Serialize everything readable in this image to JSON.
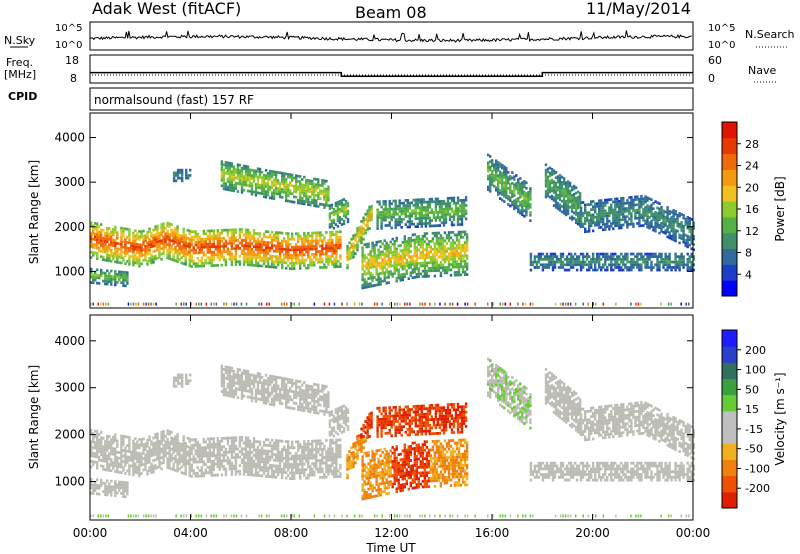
{
  "header": {
    "station": "Adak West (fitACF)",
    "beam": "Beam 08",
    "date": "11/May/2014"
  },
  "labels": {
    "nsky": "N.Sky",
    "nsearch": "N.Search",
    "freq_line1": "Freq.",
    "freq_line2": "[MHz]",
    "nave": "Nave",
    "cpid": "CPID",
    "cpid_value": "normalsound (fast) 157 RF",
    "power_cb_label": "Power [dB]",
    "velocity_cb_label": "Velocity [m s⁻¹]"
  },
  "colors": {
    "power": [
      "#0000ff",
      "#1e3ec8",
      "#2f6b9b",
      "#3f8f6a",
      "#55b045",
      "#8cca2e",
      "#f0c020",
      "#f59a10",
      "#f06a08",
      "#e83a00",
      "#e01400"
    ],
    "velocity": [
      "#1c1cff",
      "#2a40c8",
      "#2f7060",
      "#3aa040",
      "#66cc33",
      "#bfbfbf",
      "#bfbfbf",
      "#f0b020",
      "#f08010",
      "#f05000",
      "#e02000"
    ],
    "ground_scatter": "#bcbcb4"
  },
  "chart_data": [
    {
      "type": "line",
      "panel": "nsky-nsearch",
      "y_ticks": [
        "10^5",
        "10^0"
      ],
      "y_ticks_right": [
        "10^5",
        "10^0"
      ],
      "xlim": [
        0,
        24
      ]
    },
    {
      "type": "line",
      "panel": "freq-nave",
      "y_ticks": [
        "18",
        "8"
      ],
      "y_ticks_right": [
        "60",
        "0"
      ],
      "series": [
        {
          "values_x": [
            0,
            10,
            10,
            18,
            18,
            24
          ],
          "values_y": [
            11.5,
            11.5,
            10.0,
            10.0,
            11.5,
            11.5
          ]
        }
      ]
    },
    {
      "type": "heatmap",
      "panel": "power",
      "xlabel": "",
      "ylabel": "Slant Range [km]",
      "y_ticks": [
        "1000",
        "2000",
        "3000",
        "4000"
      ],
      "ylim": [
        180,
        4550
      ],
      "xlim": [
        0,
        24
      ],
      "colorbar_ticks": [
        "4",
        "8",
        "12",
        "16",
        "20",
        "24",
        "28"
      ],
      "colorbar_range": [
        0,
        32
      ]
    },
    {
      "type": "heatmap",
      "panel": "velocity",
      "xlabel": "Time UT",
      "ylabel": "Slant Range [km]",
      "y_ticks": [
        "1000",
        "2000",
        "3000",
        "4000"
      ],
      "ylim": [
        180,
        4550
      ],
      "xlim": [
        0,
        24
      ],
      "x_ticks": [
        "00:00",
        "04:00",
        "08:00",
        "12:00",
        "16:00",
        "20:00",
        "00:00"
      ],
      "colorbar_ticks": [
        "-200",
        "-100",
        "-50",
        "-15",
        "15",
        "50",
        "100",
        "200"
      ]
    }
  ]
}
